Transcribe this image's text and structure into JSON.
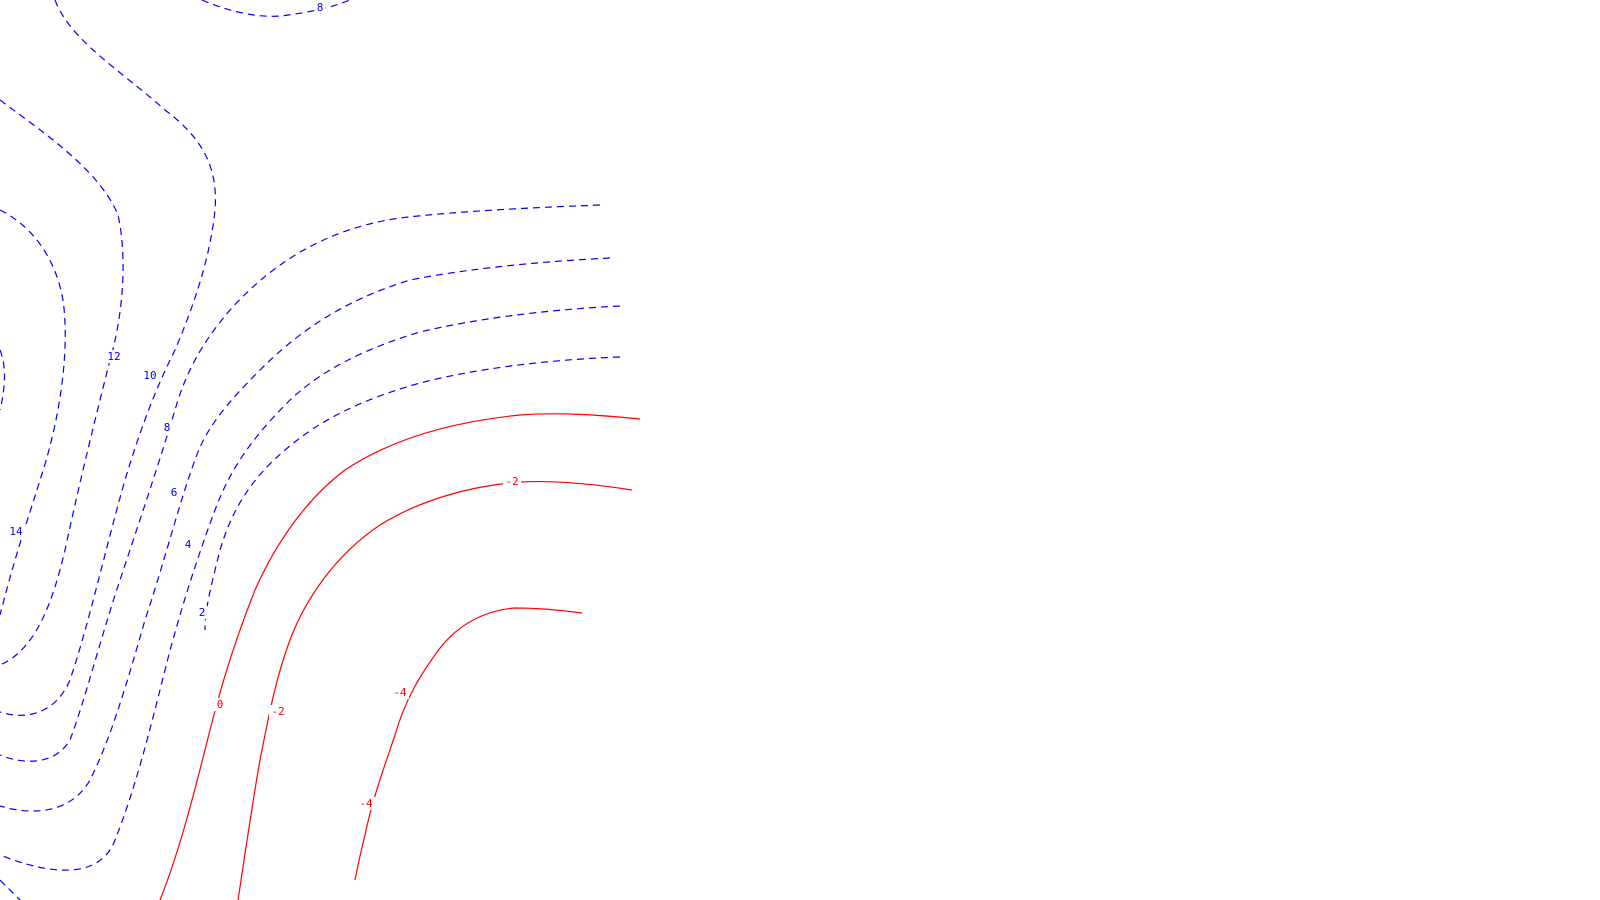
{
  "chart_data": {
    "type": "contour",
    "title": "",
    "xlabel": "",
    "ylabel": "",
    "grid": false,
    "legend": "none",
    "line_styles": {
      "positive": "dashed",
      "negative_and_zero": "solid"
    },
    "colors": {
      "positive": "#0000ff",
      "negative": "#ff0000",
      "zero": "#ff0000",
      "background": "#ffffff"
    },
    "contour_levels": [
      14,
      12,
      10,
      8,
      6,
      4,
      2,
      0,
      -2,
      -4
    ],
    "contour_labels": [
      {
        "text": "8",
        "level": 8
      },
      {
        "text": "12",
        "level": 12
      },
      {
        "text": "10",
        "level": 10
      },
      {
        "text": "8",
        "level": 8
      },
      {
        "text": "6",
        "level": 6
      },
      {
        "text": "4",
        "level": 4
      },
      {
        "text": "2",
        "level": 2
      },
      {
        "text": "14",
        "level": 14
      },
      {
        "text": "0",
        "level": 0
      },
      {
        "text": "-2",
        "level": -2
      },
      {
        "text": "-2",
        "level": -2
      },
      {
        "text": "-4",
        "level": -4
      },
      {
        "text": "-4",
        "level": -4
      }
    ]
  }
}
